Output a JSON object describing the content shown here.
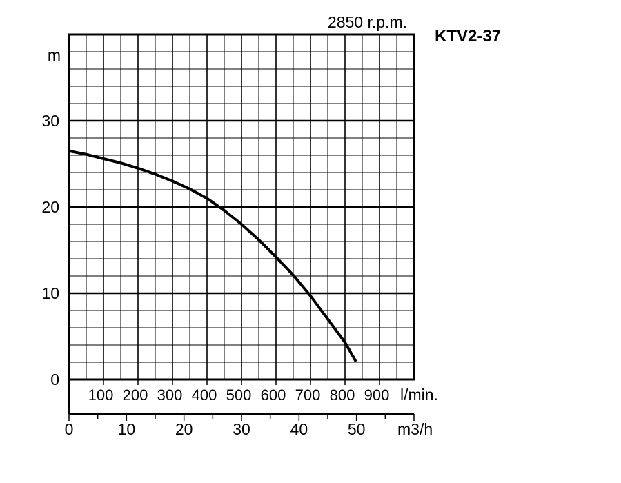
{
  "chart_data": {
    "type": "line",
    "title": "KTV2-37",
    "subtitle": "2850 r.p.m.",
    "ylabel": "m",
    "xlabel_primary": "l/min.",
    "xlabel_secondary": "m3/h",
    "ylim": [
      0,
      40
    ],
    "xlim_lmin": [
      0,
      1000
    ],
    "xlim_m3h": [
      0,
      60
    ],
    "y_ticks": [
      "0",
      "10",
      "20",
      "30"
    ],
    "x_ticks_lmin": [
      "100",
      "200",
      "300",
      "400",
      "500",
      "600",
      "700",
      "800",
      "900"
    ],
    "x_ticks_m3h": [
      "0",
      "10",
      "20",
      "30",
      "40",
      "50"
    ],
    "grid": true,
    "series": [
      {
        "x_lmin": [
          0,
          50,
          100,
          150,
          200,
          250,
          300,
          350,
          400,
          450,
          500,
          550,
          600,
          650,
          700,
          750,
          800,
          830
        ],
        "y": [
          26.5,
          26.1,
          25.6,
          25.1,
          24.5,
          23.8,
          23.0,
          22.1,
          21.0,
          19.6,
          18.0,
          16.2,
          14.2,
          12.1,
          9.7,
          7.0,
          4.3,
          2.2
        ]
      }
    ]
  }
}
